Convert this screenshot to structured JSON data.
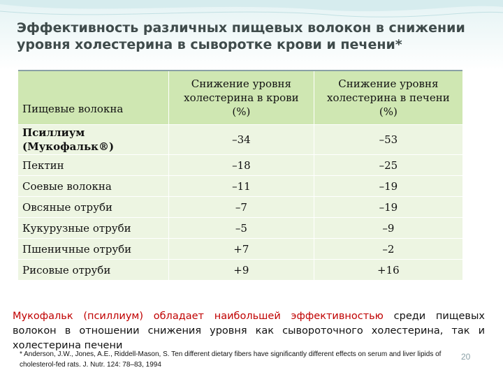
{
  "title": {
    "line1": "Эффективность различных пищевых волокон в снижении",
    "line2": "уровня холестерина в сыворотке крови и печени*"
  },
  "table": {
    "headers": [
      "Пищевые волокна",
      "Снижение уровня холестерина в крови (%)",
      "Снижение уровня холестерина в печени (%)"
    ],
    "rows": [
      {
        "name": "Псиллиум (Мукофальк®)",
        "blood": "–34",
        "liver": "–53"
      },
      {
        "name": "Пектин",
        "blood": "–18",
        "liver": "–25"
      },
      {
        "name": "Соевые волокна",
        "blood": "–11",
        "liver": "–19"
      },
      {
        "name": "Овсяные отруби",
        "blood": "–7",
        "liver": "–19"
      },
      {
        "name": "Кукурузные отруби",
        "blood": "–5",
        "liver": "–9"
      },
      {
        "name": "Пшеничные отруби",
        "blood": "+7",
        "liver": "–2"
      },
      {
        "name": "Рисовые отруби",
        "blood": "+9",
        "liver": "+16"
      }
    ]
  },
  "summary": {
    "red_part": "Мукофальк (псиллиум) обладает наибольшей эффективностью",
    "rest_part": " среди пищевых волокон в отношении снижения уровня как сывороточного холестерина, так и холестерина печени"
  },
  "reference": "* Anderson, J.W., Jones, A.E., Riddell-Mason, S. Ten different dietary fibers have significantly different effects on serum and liver lipids of cholesterol-fed rats. J. Nutr. 124: 78–83, 1994",
  "page_number": "20",
  "colors": {
    "header_bg": "#cfe7b2",
    "row_bg": "#edf5e2",
    "title": "#3f4b4b",
    "highlight": "#c00000"
  }
}
